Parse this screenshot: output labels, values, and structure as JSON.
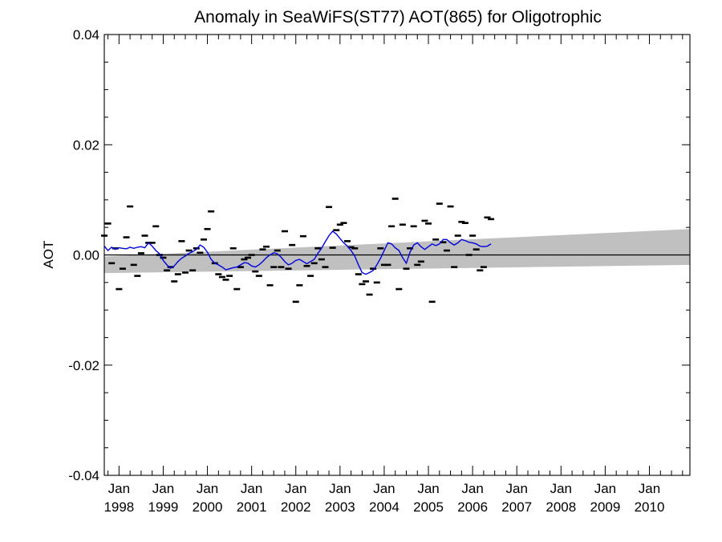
{
  "chart_data": {
    "type": "line",
    "title": "Anomaly in SeaWiFS(ST77) AOT(865) for Oligotrophic",
    "xlabel": "",
    "ylabel": "AOT",
    "xlim": [
      "1997-09-01",
      "2010-12-01"
    ],
    "ylim": [
      -0.04,
      0.04
    ],
    "grid": false,
    "y_ticks": [
      {
        "value": 0.04,
        "label": "0.04"
      },
      {
        "value": 0.02,
        "label": "0.02"
      },
      {
        "value": 0.0,
        "label": "0.00"
      },
      {
        "value": -0.02,
        "label": "-0.02"
      },
      {
        "value": -0.04,
        "label": "-0.04"
      }
    ],
    "x_ticks": [
      {
        "date": "1998-01-01",
        "month": "Jan",
        "year": "1998"
      },
      {
        "date": "1999-01-01",
        "month": "Jan",
        "year": "1999"
      },
      {
        "date": "2000-01-01",
        "month": "Jan",
        "year": "2000"
      },
      {
        "date": "2001-01-01",
        "month": "Jan",
        "year": "2001"
      },
      {
        "date": "2002-01-01",
        "month": "Jan",
        "year": "2002"
      },
      {
        "date": "2003-01-01",
        "month": "Jan",
        "year": "2003"
      },
      {
        "date": "2004-01-01",
        "month": "Jan",
        "year": "2004"
      },
      {
        "date": "2005-01-01",
        "month": "Jan",
        "year": "2005"
      },
      {
        "date": "2006-01-01",
        "month": "Jan",
        "year": "2006"
      },
      {
        "date": "2007-01-01",
        "month": "Jan",
        "year": "2007"
      },
      {
        "date": "2008-01-01",
        "month": "Jan",
        "year": "2008"
      },
      {
        "date": "2009-01-01",
        "month": "Jan",
        "year": "2009"
      },
      {
        "date": "2010-01-01",
        "month": "Jan",
        "year": "2010"
      }
    ],
    "trend_band": {
      "color": "#c0c0c0",
      "start": {
        "date": "1997-09-01",
        "upper": -0.0003,
        "lower": -0.0033
      },
      "end": {
        "date": "2010-12-01",
        "upper": 0.0047,
        "lower": -0.0018
      }
    },
    "zero_line": {
      "value": 0.0,
      "color": "#000000"
    },
    "series": [
      {
        "kind": "monthly-anomaly-markers",
        "color": "#000000",
        "start": "1997-09-01",
        "values": [
          0.0035,
          0.0057,
          -0.0015,
          0.0012,
          -0.0062,
          -0.0025,
          0.0032,
          0.0088,
          -0.0018,
          -0.0038,
          0.0003,
          0.0035,
          0.0022,
          0.0022,
          0.0052,
          0.0,
          -0.0005,
          -0.0028,
          -0.0022,
          -0.0048,
          -0.0035,
          0.0025,
          -0.0032,
          0.0008,
          -0.0028,
          0.0012,
          0.0004,
          0.0028,
          0.0047,
          0.0079,
          -0.0015,
          -0.0035,
          -0.004,
          -0.0045,
          -0.0038,
          0.0012,
          -0.0062,
          -0.0022,
          -0.0008,
          -0.0005,
          0.0,
          -0.003,
          -0.0038,
          0.001,
          0.0015,
          -0.0055,
          -0.0022,
          0.0008,
          -0.0022,
          0.0043,
          -0.0025,
          0.0018,
          -0.0085,
          -0.0055,
          0.0034,
          -0.002,
          -0.0038,
          -0.0015,
          0.0012,
          -0.0008,
          -0.0022,
          0.0087,
          0.0013,
          0.0045,
          0.0055,
          0.0058,
          0.0025,
          0.0014,
          0.0012,
          -0.0035,
          -0.0053,
          -0.0048,
          -0.0072,
          -0.0025,
          -0.005,
          0.0012,
          -0.0018,
          -0.0018,
          0.0052,
          0.0102,
          -0.0062,
          0.0055,
          -0.0025,
          0.0012,
          0.0052,
          -0.0018,
          -0.0012,
          0.0062,
          0.0057,
          -0.0085,
          0.0028,
          0.0093,
          0.0023,
          0.0008,
          0.0088,
          -0.0022,
          0.0035,
          0.006,
          0.0058,
          0.0,
          0.0035,
          0.001,
          -0.0028,
          -0.0022,
          0.0068,
          0.0065
        ]
      },
      {
        "kind": "running-mean",
        "color": "#0000dd",
        "start": "1997-09-01",
        "values": [
          0.0016,
          0.0008,
          0.0014,
          0.001,
          0.0013,
          0.0012,
          0.0011,
          0.0014,
          0.0012,
          0.0014,
          0.0015,
          0.0013,
          0.0022,
          0.0016,
          0.0008,
          0.0002,
          -0.001,
          -0.0018,
          -0.0024,
          -0.002,
          -0.0012,
          -0.0006,
          -0.0002,
          0.0003,
          0.0006,
          0.001,
          0.0018,
          0.0014,
          0.0005,
          -0.0008,
          -0.0015,
          -0.0018,
          -0.0022,
          -0.0027,
          -0.0025,
          -0.0023,
          -0.0022,
          -0.0018,
          -0.0014,
          -0.0015,
          -0.002,
          -0.0022,
          -0.0018,
          -0.0012,
          -0.0005,
          0.0,
          0.0004,
          0.0002,
          -0.0004,
          -0.0012,
          -0.0018,
          -0.0015,
          -0.001,
          -0.0008,
          -0.0012,
          -0.0016,
          -0.0012,
          -0.0008,
          0.0003,
          0.0012,
          0.0024,
          0.0035,
          0.0043,
          0.0038,
          0.003,
          0.0022,
          0.0016,
          0.0008,
          -0.0002,
          -0.0018,
          -0.0032,
          -0.0035,
          -0.0032,
          -0.0028,
          -0.0018,
          -0.0006,
          0.0008,
          0.0022,
          0.002,
          0.0013,
          0.0008,
          -0.0005,
          -0.0015,
          0.0005,
          0.0018,
          0.0022,
          0.0015,
          0.001,
          0.0015,
          0.002,
          0.0017,
          0.002,
          0.0028,
          0.0028,
          0.0022,
          0.0018,
          0.0022,
          0.0028,
          0.0026,
          0.0023,
          0.0022,
          0.002,
          0.0016,
          0.0015,
          0.0016,
          0.002
        ]
      }
    ]
  }
}
